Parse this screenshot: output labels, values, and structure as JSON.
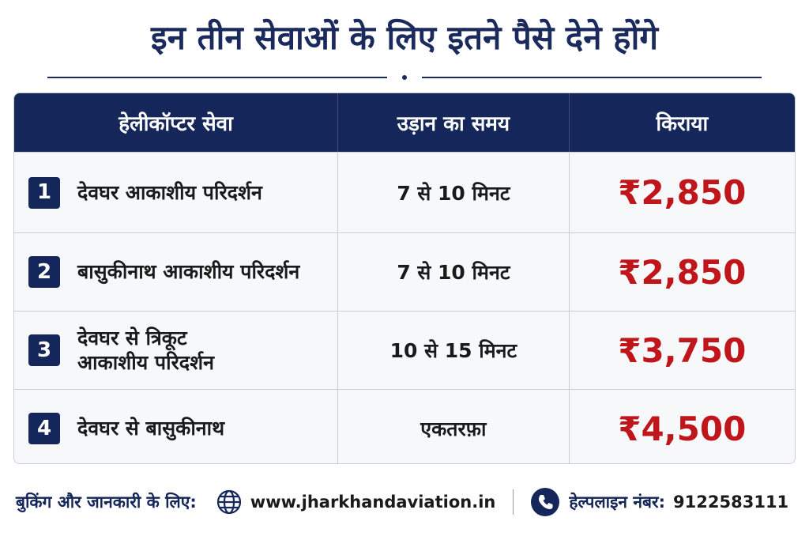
{
  "title": "इन तीन सेवाओं के लिए इतने पैसे देने होंगे",
  "table": {
    "header": [
      "हेलीकॉप्टर सेवा",
      "उड़ान का समय",
      "किराया"
    ],
    "rows": [
      [
        "1",
        "देवघर आकाशीय परिदर्शन",
        "7 से 10 मिनट",
        "₹2,850"
      ],
      [
        "2",
        "बासुकीनाथ आकाशीय परिदर्शन",
        "7 से 10 मिनट",
        "₹2,850"
      ],
      [
        "3",
        "देवघर से त्रिकूट\nआकाशीय परिदर्शन",
        "10 से 15 मिनट",
        "₹3,750"
      ],
      [
        "4",
        "देवघर से बासुकीनाथ",
        "एकतरफ़ा",
        "₹4,500"
      ]
    ]
  },
  "footer": {
    "label": "बुकिंग और जानकारी के लिए:",
    "website": "www.jharkhandaviation.in",
    "helpline_label": "हेल्पलाइन नंबर:",
    "helpline_number": "9122583111"
  }
}
